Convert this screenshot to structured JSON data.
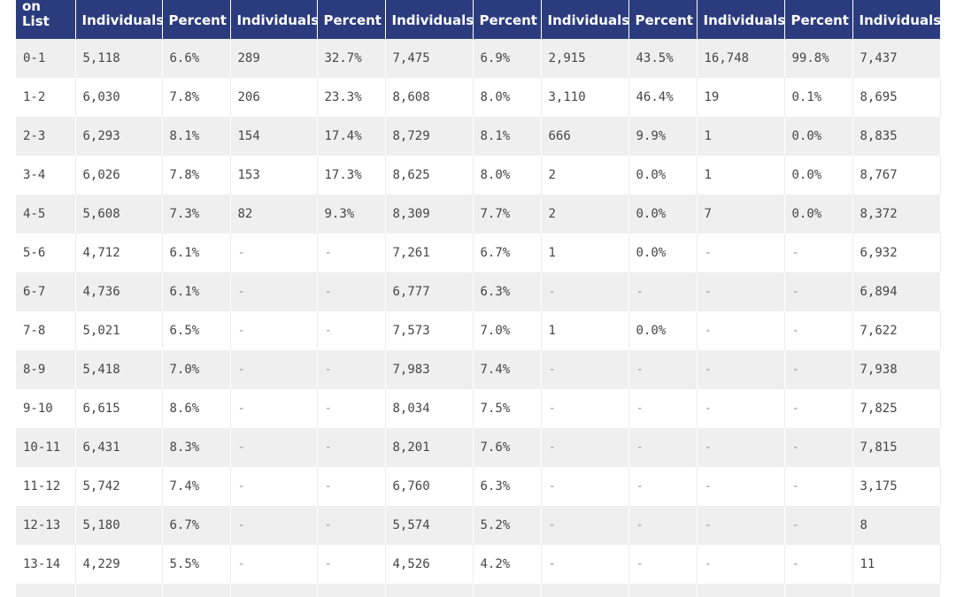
{
  "table": {
    "first_header": "on List",
    "headers": [
      "Individuals",
      "Percent",
      "Individuals",
      "Percent",
      "Individuals",
      "Percent",
      "Individuals",
      "Percent",
      "Individuals",
      "Percent",
      "Individuals"
    ],
    "rows": [
      [
        "0-1",
        "5,118",
        "6.6%",
        "289",
        "32.7%",
        "7,475",
        "6.9%",
        "2,915",
        "43.5%",
        "16,748",
        "99.8%",
        "7,437"
      ],
      [
        "1-2",
        "6,030",
        "7.8%",
        "206",
        "23.3%",
        "8,608",
        "8.0%",
        "3,110",
        "46.4%",
        "19",
        "0.1%",
        "8,695"
      ],
      [
        "2-3",
        "6,293",
        "8.1%",
        "154",
        "17.4%",
        "8,729",
        "8.1%",
        "666",
        "9.9%",
        "1",
        "0.0%",
        "8,835"
      ],
      [
        "3-4",
        "6,026",
        "7.8%",
        "153",
        "17.3%",
        "8,625",
        "8.0%",
        "2",
        "0.0%",
        "1",
        "0.0%",
        "8,767"
      ],
      [
        "4-5",
        "5,608",
        "7.3%",
        "82",
        "9.3%",
        "8,309",
        "7.7%",
        "2",
        "0.0%",
        "7",
        "0.0%",
        "8,372"
      ],
      [
        "5-6",
        "4,712",
        "6.1%",
        "-",
        "-",
        "7,261",
        "6.7%",
        "1",
        "0.0%",
        "-",
        "-",
        "6,932"
      ],
      [
        "6-7",
        "4,736",
        "6.1%",
        "-",
        "-",
        "6,777",
        "6.3%",
        "-",
        "-",
        "-",
        "-",
        "6,894"
      ],
      [
        "7-8",
        "5,021",
        "6.5%",
        "-",
        "-",
        "7,573",
        "7.0%",
        "1",
        "0.0%",
        "-",
        "-",
        "7,622"
      ],
      [
        "8-9",
        "5,418",
        "7.0%",
        "-",
        "-",
        "7,983",
        "7.4%",
        "-",
        "-",
        "-",
        "-",
        "7,938"
      ],
      [
        "9-10",
        "6,615",
        "8.6%",
        "-",
        "-",
        "8,034",
        "7.5%",
        "-",
        "-",
        "-",
        "-",
        "7,825"
      ],
      [
        "10-11",
        "6,431",
        "8.3%",
        "-",
        "-",
        "8,201",
        "7.6%",
        "-",
        "-",
        "-",
        "-",
        "7,815"
      ],
      [
        "11-12",
        "5,742",
        "7.4%",
        "-",
        "-",
        "6,760",
        "6.3%",
        "-",
        "-",
        "-",
        "-",
        "3,175"
      ],
      [
        "12-13",
        "5,180",
        "6.7%",
        "-",
        "-",
        "5,574",
        "5.2%",
        "-",
        "-",
        "-",
        "-",
        "8"
      ],
      [
        "13-14",
        "4,229",
        "5.5%",
        "-",
        "-",
        "4,526",
        "4.2%",
        "-",
        "-",
        "-",
        "-",
        "11"
      ]
    ]
  }
}
